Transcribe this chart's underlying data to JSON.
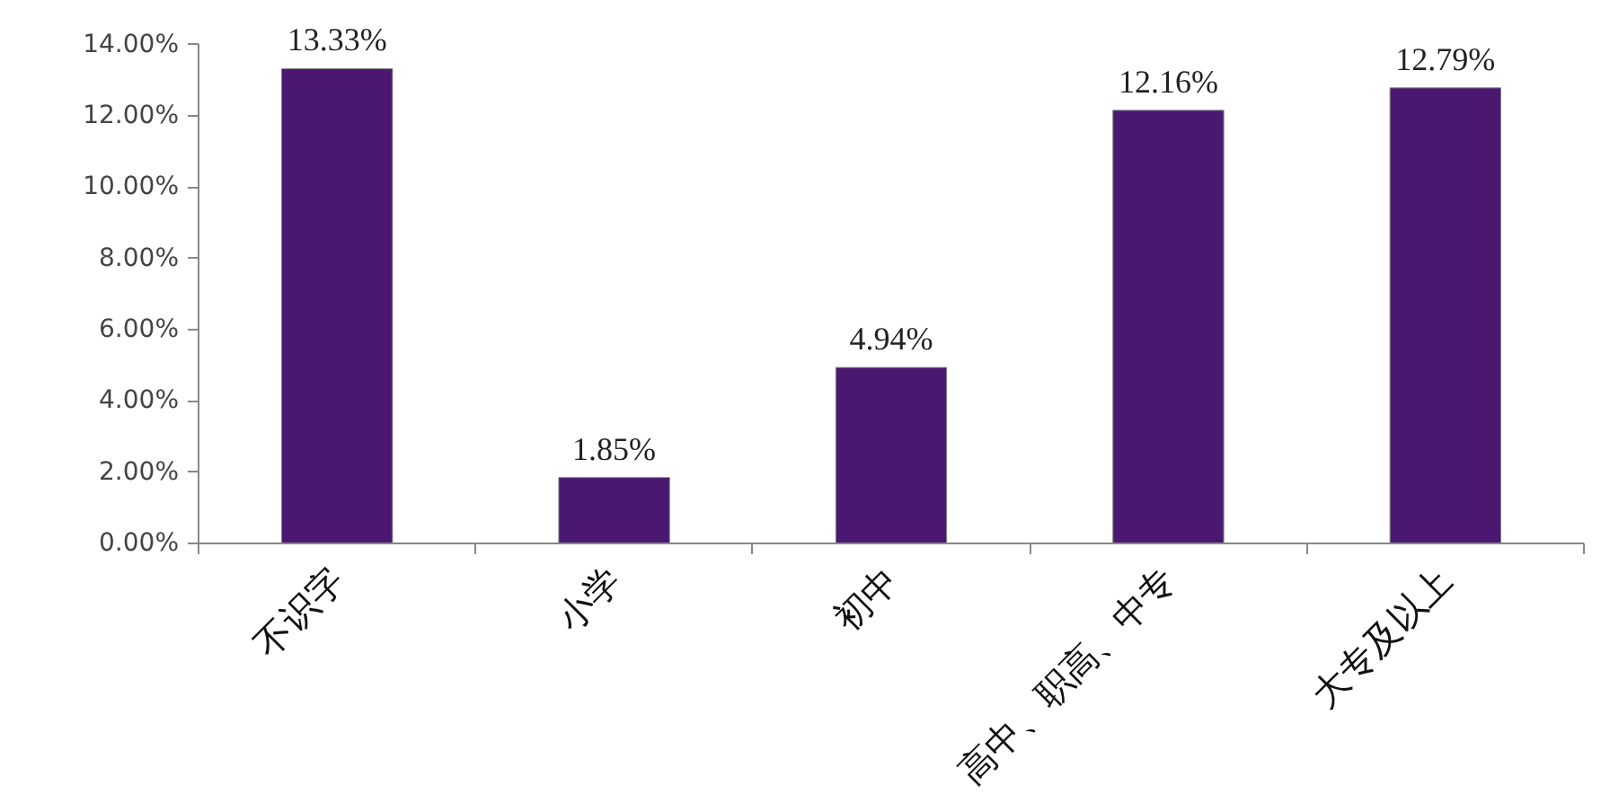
{
  "chart_data": {
    "type": "bar",
    "categories": [
      "不识字",
      "小学",
      "初中",
      "高中、职高、中专",
      "大专及以上"
    ],
    "values": [
      13.33,
      1.85,
      4.94,
      12.16,
      12.79
    ],
    "value_labels": [
      "13.33%",
      "1.85%",
      "4.94%",
      "12.16%",
      "12.79%"
    ],
    "color": "#4a1870",
    "ylim": [
      0,
      14
    ],
    "yticks": [
      {
        "value": 0,
        "label": "0.00%"
      },
      {
        "value": 2,
        "label": "2.00%"
      },
      {
        "value": 4,
        "label": "4.00%"
      },
      {
        "value": 6,
        "label": "6.00%"
      },
      {
        "value": 8,
        "label": "8.00%"
      },
      {
        "value": 10,
        "label": "10.00%"
      },
      {
        "value": 12,
        "label": "12.00%"
      },
      {
        "value": 14,
        "label": "14.00%"
      }
    ],
    "grid": false
  }
}
